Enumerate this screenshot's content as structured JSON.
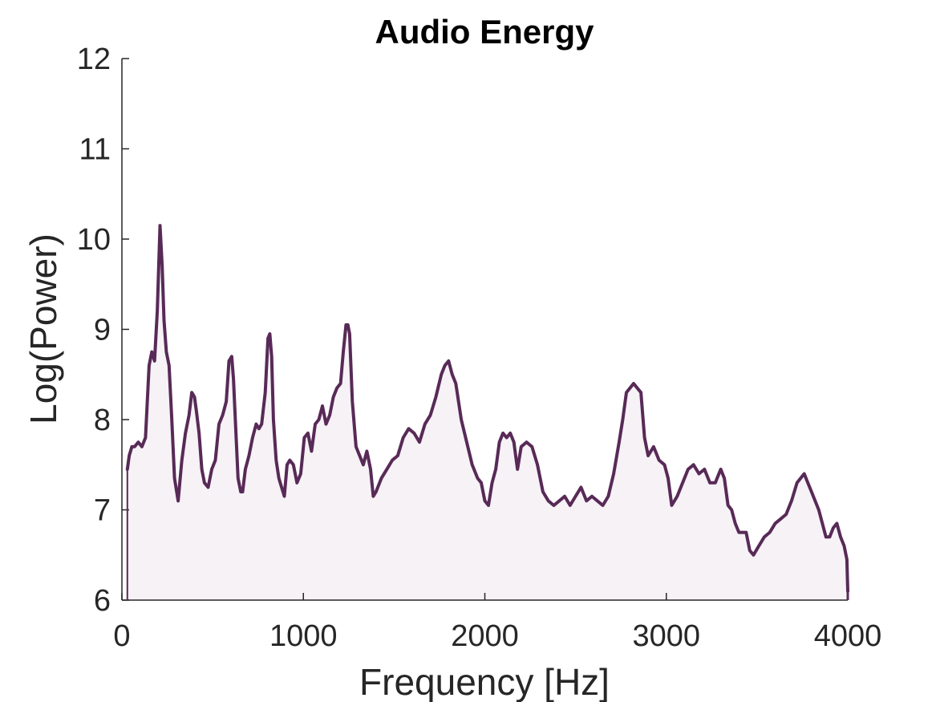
{
  "chart_data": {
    "type": "area",
    "title": "Audio Energy",
    "xlabel": "Frequency [Hz]",
    "ylabel": "Log(Power)",
    "xlim": [
      0,
      4000
    ],
    "ylim": [
      6,
      12
    ],
    "xticks": [
      0,
      1000,
      2000,
      3000,
      4000
    ],
    "yticks": [
      6,
      7,
      8,
      9,
      10,
      11,
      12
    ],
    "grid": false,
    "legend": "none",
    "colors": {
      "line": "#582a57",
      "fill": "#f6f2f6",
      "axis": "#262626",
      "title": "#000000"
    },
    "series": [
      {
        "x": [
          30,
          40,
          55,
          70,
          90,
          110,
          130,
          150,
          165,
          180,
          195,
          210,
          222,
          232,
          245,
          260,
          275,
          290,
          310,
          330,
          350,
          370,
          385,
          400,
          410,
          425,
          440,
          455,
          475,
          495,
          515,
          535,
          555,
          575,
          590,
          605,
          615,
          625,
          640,
          655,
          665,
          680,
          700,
          720,
          740,
          755,
          770,
          790,
          805,
          815,
          825,
          835,
          850,
          865,
          880,
          895,
          910,
          925,
          945,
          965,
          985,
          1005,
          1025,
          1045,
          1065,
          1085,
          1105,
          1125,
          1145,
          1165,
          1185,
          1205,
          1220,
          1235,
          1245,
          1255,
          1270,
          1290,
          1310,
          1330,
          1350,
          1370,
          1385,
          1400,
          1430,
          1460,
          1490,
          1520,
          1550,
          1580,
          1610,
          1640,
          1670,
          1700,
          1730,
          1760,
          1780,
          1800,
          1820,
          1840,
          1870,
          1900,
          1930,
          1960,
          1980,
          2000,
          2020,
          2040,
          2060,
          2080,
          2100,
          2120,
          2140,
          2160,
          2180,
          2200,
          2230,
          2260,
          2290,
          2320,
          2350,
          2380,
          2410,
          2440,
          2470,
          2500,
          2530,
          2560,
          2590,
          2620,
          2650,
          2680,
          2710,
          2740,
          2760,
          2780,
          2800,
          2820,
          2840,
          2860,
          2880,
          2900,
          2930,
          2960,
          2990,
          3010,
          3030,
          3060,
          3090,
          3120,
          3150,
          3180,
          3210,
          3240,
          3270,
          3300,
          3320,
          3340,
          3360,
          3380,
          3400,
          3420,
          3440,
          3460,
          3480,
          3510,
          3540,
          3570,
          3600,
          3630,
          3660,
          3690,
          3720,
          3740,
          3760,
          3780,
          3800,
          3820,
          3840,
          3860,
          3880,
          3900,
          3920,
          3940,
          3960,
          3980,
          3995,
          4000
        ],
        "y": [
          7.45,
          7.6,
          7.7,
          7.7,
          7.75,
          7.7,
          7.8,
          8.6,
          8.75,
          8.65,
          9.2,
          10.15,
          9.7,
          9.1,
          8.75,
          8.6,
          8.0,
          7.35,
          7.1,
          7.55,
          7.85,
          8.05,
          8.3,
          8.25,
          8.1,
          7.85,
          7.45,
          7.3,
          7.25,
          7.45,
          7.55,
          7.95,
          8.05,
          8.2,
          8.65,
          8.7,
          8.45,
          8.0,
          7.35,
          7.2,
          7.2,
          7.45,
          7.6,
          7.8,
          7.95,
          7.9,
          7.95,
          8.3,
          8.9,
          8.95,
          8.7,
          8.0,
          7.55,
          7.35,
          7.25,
          7.15,
          7.5,
          7.55,
          7.5,
          7.3,
          7.4,
          7.8,
          7.85,
          7.65,
          7.95,
          8.0,
          8.15,
          7.95,
          8.05,
          8.25,
          8.35,
          8.4,
          8.75,
          9.05,
          9.05,
          8.95,
          8.2,
          7.7,
          7.6,
          7.5,
          7.65,
          7.45,
          7.15,
          7.2,
          7.35,
          7.45,
          7.55,
          7.6,
          7.8,
          7.9,
          7.85,
          7.75,
          7.95,
          8.05,
          8.25,
          8.5,
          8.6,
          8.65,
          8.5,
          8.4,
          8.0,
          7.75,
          7.5,
          7.35,
          7.3,
          7.1,
          7.05,
          7.3,
          7.45,
          7.75,
          7.85,
          7.8,
          7.85,
          7.75,
          7.45,
          7.7,
          7.75,
          7.7,
          7.5,
          7.2,
          7.1,
          7.05,
          7.1,
          7.15,
          7.05,
          7.15,
          7.25,
          7.1,
          7.15,
          7.1,
          7.05,
          7.15,
          7.4,
          7.75,
          8.0,
          8.3,
          8.35,
          8.4,
          8.35,
          8.3,
          7.8,
          7.6,
          7.7,
          7.55,
          7.5,
          7.35,
          7.05,
          7.15,
          7.3,
          7.45,
          7.5,
          7.4,
          7.45,
          7.3,
          7.3,
          7.45,
          7.35,
          7.05,
          7.0,
          6.85,
          6.75,
          6.75,
          6.75,
          6.55,
          6.5,
          6.6,
          6.7,
          6.75,
          6.85,
          6.9,
          6.95,
          7.1,
          7.3,
          7.35,
          7.4,
          7.3,
          7.2,
          7.1,
          7.0,
          6.85,
          6.7,
          6.7,
          6.8,
          6.85,
          6.7,
          6.6,
          6.45,
          6.1
        ]
      }
    ]
  }
}
